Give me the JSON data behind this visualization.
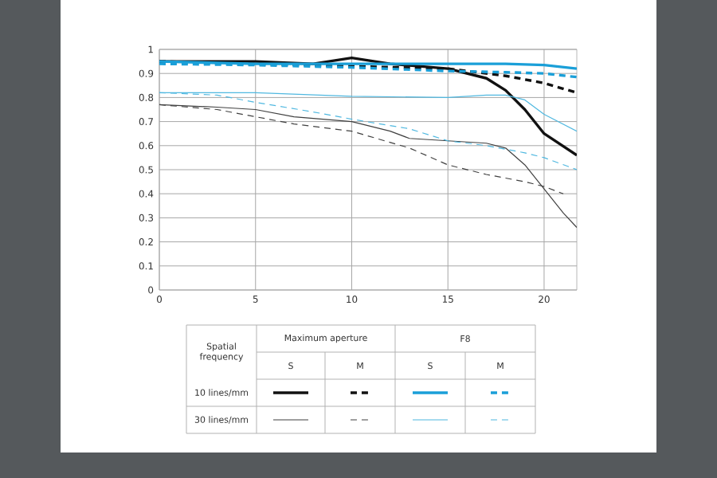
{
  "chart_data": {
    "type": "line",
    "xlim": [
      0,
      21.7
    ],
    "ylim": [
      0,
      1
    ],
    "xticks": [
      0,
      5,
      10,
      15,
      20
    ],
    "yticks": [
      0,
      0.1,
      0.2,
      0.3,
      0.4,
      0.5,
      0.6,
      0.7,
      0.8,
      0.9,
      1
    ],
    "grid": true,
    "annotations": [
      "Spatial frequency",
      "Maximum aperture",
      "F8",
      "S",
      "M",
      "S",
      "M",
      "10 lines/mm",
      "30 lines/mm"
    ],
    "series": [
      {
        "color": "#111111",
        "line_style": "solid",
        "x": [
          0,
          5,
          8,
          10,
          12,
          15,
          17,
          18,
          19,
          20,
          21.7
        ],
        "values": [
          0.95,
          0.95,
          0.94,
          0.965,
          0.94,
          0.92,
          0.88,
          0.83,
          0.75,
          0.65,
          0.56
        ]
      },
      {
        "color": "#111111",
        "line_style": "dashed",
        "x": [
          0,
          5,
          10,
          15,
          18,
          20,
          21.7
        ],
        "values": [
          0.95,
          0.94,
          0.93,
          0.92,
          0.89,
          0.86,
          0.82
        ]
      },
      {
        "color": "#1a9fd8",
        "line_style": "solid",
        "x": [
          0,
          5,
          10,
          15,
          18,
          20,
          21.7
        ],
        "values": [
          0.95,
          0.94,
          0.94,
          0.94,
          0.94,
          0.935,
          0.92
        ]
      },
      {
        "color": "#1a9fd8",
        "line_style": "dashed",
        "x": [
          0,
          5,
          10,
          15,
          18,
          20,
          21.7
        ],
        "values": [
          0.94,
          0.935,
          0.925,
          0.91,
          0.905,
          0.9,
          0.885
        ]
      },
      {
        "color": "#404040",
        "line_style": "solid",
        "x": [
          0,
          3,
          5,
          7,
          10,
          12,
          13,
          15,
          17,
          18,
          19,
          20,
          21,
          21.7
        ],
        "values": [
          0.77,
          0.76,
          0.75,
          0.72,
          0.7,
          0.66,
          0.63,
          0.62,
          0.61,
          0.59,
          0.52,
          0.42,
          0.32,
          0.26
        ]
      },
      {
        "color": "#404040",
        "line_style": "dashed",
        "x": [
          0,
          3,
          5,
          7,
          10,
          13,
          15,
          17,
          19,
          20,
          21
        ],
        "values": [
          0.77,
          0.75,
          0.72,
          0.69,
          0.66,
          0.59,
          0.52,
          0.48,
          0.45,
          0.43,
          0.4
        ]
      },
      {
        "color": "#4fb8e0",
        "line_style": "solid",
        "x": [
          0,
          5,
          10,
          15,
          17,
          18,
          19,
          20,
          21.7
        ],
        "values": [
          0.82,
          0.82,
          0.805,
          0.8,
          0.81,
          0.81,
          0.79,
          0.73,
          0.66
        ]
      },
      {
        "color": "#4fb8e0",
        "line_style": "dashed",
        "x": [
          0,
          3,
          5,
          8,
          10,
          13,
          15,
          17,
          19,
          20,
          21.7
        ],
        "values": [
          0.82,
          0.81,
          0.78,
          0.74,
          0.71,
          0.67,
          0.62,
          0.6,
          0.57,
          0.55,
          0.5
        ]
      }
    ]
  }
}
